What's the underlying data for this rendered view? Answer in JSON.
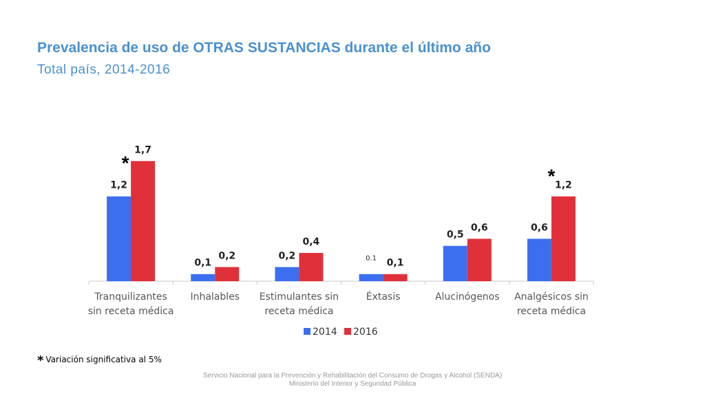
{
  "header": {
    "title": "Prevalencia de uso de OTRAS SUSTANCIAS durante el último año",
    "subtitle": "Total país, 2014-2016"
  },
  "chart_data": {
    "type": "bar",
    "title": "Prevalencia de uso de OTRAS SUSTANCIAS durante el último año",
    "subtitle": "Total país, 2014-2016",
    "categories": [
      [
        "Tranquilizantes",
        "sin receta médica"
      ],
      [
        "Inhalables"
      ],
      [
        "Estimulantes sin",
        "receta médica"
      ],
      [
        "Éxtasis"
      ],
      [
        "Alucinógenos"
      ],
      [
        "Analgésicos sin",
        "receta médica"
      ]
    ],
    "series": [
      {
        "name": "2014",
        "color": "#3b6ff0",
        "values": [
          1.2,
          0.1,
          0.2,
          0.1,
          0.5,
          0.6
        ],
        "labels": [
          "1,2",
          "0,1",
          "0,2",
          "0.1",
          "0,5",
          "0,6"
        ]
      },
      {
        "name": "2016",
        "color": "#e0303a",
        "values": [
          1.7,
          0.2,
          0.4,
          0.1,
          0.6,
          1.2
        ],
        "labels": [
          "1,7",
          "0,2",
          "0,4",
          "0,1",
          "0,6",
          "1,2"
        ]
      }
    ],
    "significant_marker": "*",
    "significant_categories": [
      0,
      5
    ],
    "ylim": [
      0,
      1.8
    ],
    "xlabel": "",
    "ylabel": "",
    "legend_position": "bottom"
  },
  "footnote": {
    "star": "*",
    "text": "Variación significativa al 5%"
  },
  "footer": {
    "line1": "Servicio Nacional para la Prevención y Rehabilitación del Consumo de Drogas y Alcohol (SENDA)",
    "line2": "Ministerio del Interior y Seguridad Pública"
  }
}
